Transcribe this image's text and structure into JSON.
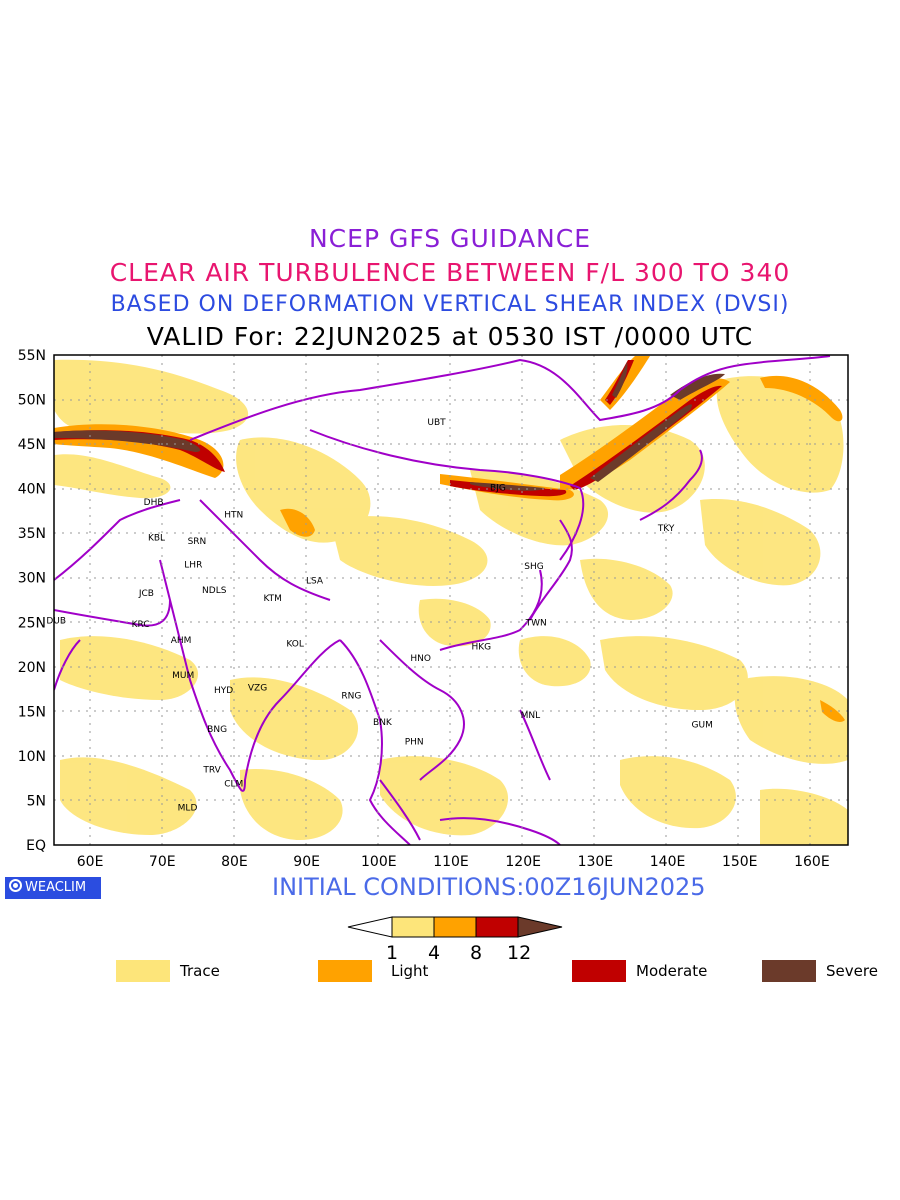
{
  "titles": {
    "line1": "NCEP GFS GUIDANCE",
    "line2": "CLEAR AIR TURBULENCE BETWEEN F/L 300 TO 340",
    "line3": "BASED ON DEFORMATION VERTICAL SHEAR INDEX (DVSI)",
    "line4": "VALID For: 22JUN2025 at 0530 IST /0000 UTC"
  },
  "colors": {
    "line1": "#8a1fd6",
    "line2": "#e8156f",
    "line3": "#2c4be0",
    "line4": "#000000",
    "trace": "#fde57a",
    "light": "#ffa200",
    "moderate": "#c00000",
    "severe": "#6b3a2a",
    "boundaries": "#a000c8"
  },
  "map": {
    "lon_labels": [
      "60E",
      "70E",
      "80E",
      "90E",
      "100E",
      "110E",
      "120E",
      "130E",
      "140E",
      "150E",
      "160E"
    ],
    "lat_labels": [
      "55N",
      "50N",
      "45N",
      "40N",
      "35N",
      "30N",
      "25N",
      "20N",
      "15N",
      "10N",
      "5N",
      "EQ"
    ],
    "cities": [
      {
        "label": "UBT",
        "lon": 108.0,
        "lat": 47.5
      },
      {
        "label": "BJG",
        "lon": 116.5,
        "lat": 40.1
      },
      {
        "label": "TKY",
        "lon": 139.8,
        "lat": 35.6
      },
      {
        "label": "SHG",
        "lon": 121.5,
        "lat": 31.3
      },
      {
        "label": "TWN",
        "lon": 121.8,
        "lat": 25.0
      },
      {
        "label": "HKG",
        "lon": 114.2,
        "lat": 22.3
      },
      {
        "label": "HNO",
        "lon": 105.8,
        "lat": 21.0
      },
      {
        "label": "DHB",
        "lon": 68.8,
        "lat": 38.5
      },
      {
        "label": "HTN",
        "lon": 79.9,
        "lat": 37.1
      },
      {
        "label": "KBL",
        "lon": 69.2,
        "lat": 34.5
      },
      {
        "label": "SRN",
        "lon": 74.8,
        "lat": 34.1
      },
      {
        "label": "LHR",
        "lon": 74.3,
        "lat": 31.5
      },
      {
        "label": "NDLS",
        "lon": 77.2,
        "lat": 28.6
      },
      {
        "label": "JCB",
        "lon": 67.8,
        "lat": 28.3
      },
      {
        "label": "KTM",
        "lon": 85.3,
        "lat": 27.7
      },
      {
        "label": "LSA",
        "lon": 91.1,
        "lat": 29.7
      },
      {
        "label": "DUB",
        "lon": 55.3,
        "lat": 25.2
      },
      {
        "label": "KRC",
        "lon": 67.0,
        "lat": 24.8
      },
      {
        "label": "AHM",
        "lon": 72.6,
        "lat": 23.0
      },
      {
        "label": "KOL",
        "lon": 88.4,
        "lat": 22.6
      },
      {
        "label": "MUM",
        "lon": 72.9,
        "lat": 19.1
      },
      {
        "label": "HYD",
        "lon": 78.5,
        "lat": 17.4
      },
      {
        "label": "VZG",
        "lon": 83.2,
        "lat": 17.7
      },
      {
        "label": "RNG",
        "lon": 96.2,
        "lat": 16.8
      },
      {
        "label": "BNK",
        "lon": 100.5,
        "lat": 13.8
      },
      {
        "label": "PHN",
        "lon": 104.9,
        "lat": 11.6
      },
      {
        "label": "MNL",
        "lon": 121.0,
        "lat": 14.6
      },
      {
        "label": "GUM",
        "lon": 144.8,
        "lat": 13.5
      },
      {
        "label": "BNG",
        "lon": 77.6,
        "lat": 13.0
      },
      {
        "label": "TRV",
        "lon": 76.9,
        "lat": 8.5
      },
      {
        "label": "CLM",
        "lon": 79.9,
        "lat": 6.9
      },
      {
        "label": "MLD",
        "lon": 73.5,
        "lat": 4.2
      }
    ]
  },
  "branding": {
    "badge": "WEACLIM"
  },
  "initial_conditions": "INITIAL CONDITIONS:00Z16JUN2025",
  "colorbar": {
    "ticks": [
      "1",
      "4",
      "8",
      "12"
    ]
  },
  "legend": [
    {
      "label": "Trace",
      "color": "#fde57a"
    },
    {
      "label": "Light",
      "color": "#ffa200"
    },
    {
      "label": "Moderate",
      "color": "#c00000"
    },
    {
      "label": "Severe",
      "color": "#6b3a2a"
    }
  ]
}
